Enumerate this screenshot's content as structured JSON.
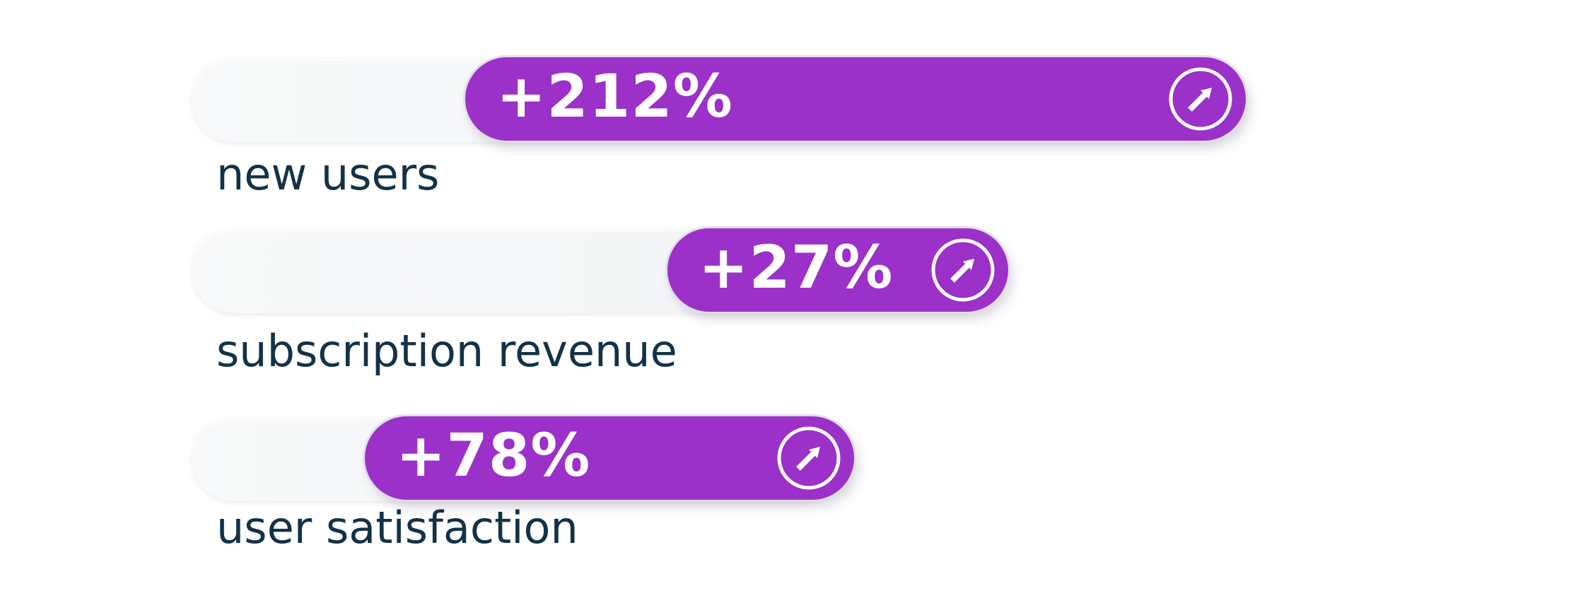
{
  "chart_data": {
    "type": "bar",
    "title": "",
    "categories": [
      "new users",
      "subscription revenue",
      "user satisfaction"
    ],
    "values": [
      212,
      27,
      78
    ],
    "value_labels": [
      "+212%",
      "+27%",
      "+78%"
    ],
    "unit": "%",
    "orientation": "horizontal",
    "bar_color": "#9b31c8",
    "label_color": "#133247",
    "icon": "trend-up-arrow-icon"
  }
}
